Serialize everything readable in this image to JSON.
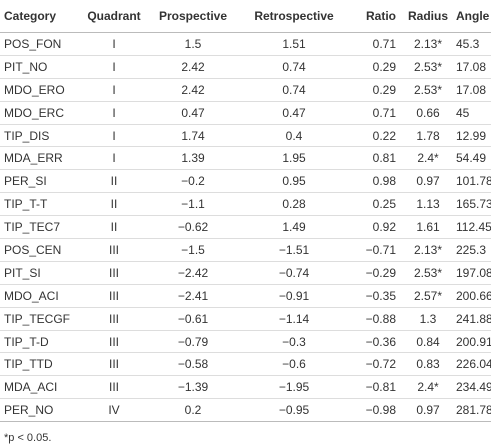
{
  "table": {
    "header": [
      "Category",
      "Quadrant",
      "Prospective",
      "Retrospective",
      "Ratio",
      "Radius",
      "Angle"
    ],
    "rows": [
      [
        "POS_FON",
        "I",
        "1.5",
        "1.51",
        "0.71",
        "2.13*",
        "45.3"
      ],
      [
        "PIT_NO",
        "I",
        "2.42",
        "0.74",
        "0.29",
        "2.53*",
        "17.08"
      ],
      [
        "MDO_ERO",
        "I",
        "2.42",
        "0.74",
        "0.29",
        "2.53*",
        "17.08"
      ],
      [
        "MDO_ERC",
        "I",
        "0.47",
        "0.47",
        "0.71",
        "0.66",
        "45"
      ],
      [
        "TIP_DIS",
        "I",
        "1.74",
        "0.4",
        "0.22",
        "1.78",
        "12.99"
      ],
      [
        "MDA_ERR",
        "I",
        "1.39",
        "1.95",
        "0.81",
        "2.4*",
        "54.49"
      ],
      [
        "PER_SI",
        "II",
        "−0.2",
        "0.95",
        "0.98",
        "0.97",
        "101.78"
      ],
      [
        "TIP_T-T",
        "II",
        "−1.1",
        "0.28",
        "0.25",
        "1.13",
        "165.73"
      ],
      [
        "TIP_TEC7",
        "II",
        "−0.62",
        "1.49",
        "0.92",
        "1.61",
        "112.45"
      ],
      [
        "POS_CEN",
        "III",
        "−1.5",
        "−1.51",
        "−0.71",
        "2.13*",
        "225.3"
      ],
      [
        "PIT_SI",
        "III",
        "−2.42",
        "−0.74",
        "−0.29",
        "2.53*",
        "197.08"
      ],
      [
        "MDO_ACI",
        "III",
        "−2.41",
        "−0.91",
        "−0.35",
        "2.57*",
        "200.66"
      ],
      [
        "TIP_TECGF",
        "III",
        "−0.61",
        "−1.14",
        "−0.88",
        "1.3",
        "241.88"
      ],
      [
        "TIP_T-D",
        "III",
        "−0.79",
        "−0.3",
        "−0.36",
        "0.84",
        "200.91"
      ],
      [
        "TIP_TTD",
        "III",
        "−0.58",
        "−0.6",
        "−0.72",
        "0.83",
        "226.04"
      ],
      [
        "MDA_ACI",
        "III",
        "−1.39",
        "−1.95",
        "−0.81",
        "2.4*",
        "234.49"
      ],
      [
        "PER_NO",
        "IV",
        "0.2",
        "−0.95",
        "−0.98",
        "0.97",
        "281.78"
      ]
    ],
    "footnote": "*p < 0.05."
  }
}
